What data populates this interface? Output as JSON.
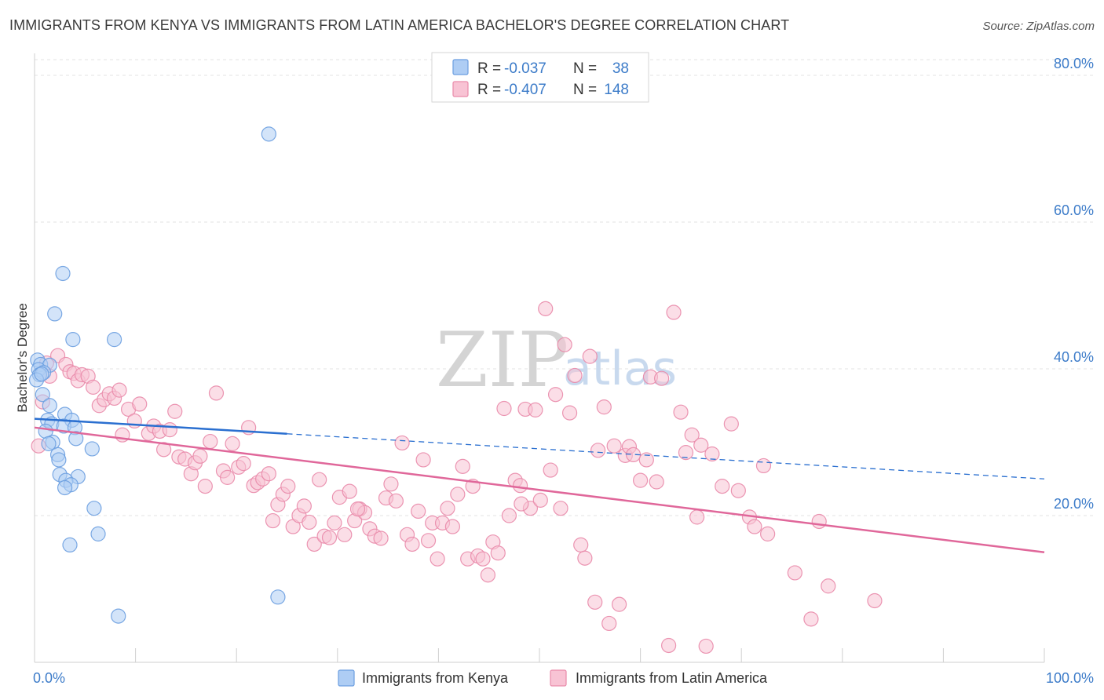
{
  "header": {
    "title": "IMMIGRANTS FROM KENYA VS IMMIGRANTS FROM LATIN AMERICA BACHELOR'S DEGREE CORRELATION CHART",
    "source": "Source: ZipAtlas.com"
  },
  "watermark": {
    "zip": "ZIP",
    "atlas": "atlas"
  },
  "colors": {
    "kenya_fill": "#aecdf4",
    "kenya_stroke": "#6b9ee0",
    "kenya_line": "#2a6fd0",
    "latam_fill": "#f8c3d4",
    "latam_stroke": "#e98aaa",
    "latam_line": "#e0679a",
    "tick_text": "#3d7cc9",
    "grid": "#e3e3e3"
  },
  "legend": {
    "rows": [
      {
        "r_label": "R =",
        "r_value": "-0.037",
        "n_label": "N =",
        "n_value": "38"
      },
      {
        "r_label": "R =",
        "r_value": "-0.407",
        "n_label": "N =",
        "n_value": "148"
      }
    ]
  },
  "chart_data": {
    "type": "scatter",
    "title": "IMMIGRANTS FROM KENYA VS IMMIGRANTS FROM LATIN AMERICA BACHELOR'S DEGREE CORRELATION CHART",
    "xlabel": "",
    "ylabel": "Bachelor's Degree",
    "xlim": [
      0,
      100
    ],
    "ylim": [
      0,
      83
    ],
    "x_tick_labels": [
      "0.0%",
      "100.0%"
    ],
    "y_ticks": [
      20,
      40,
      60,
      80
    ],
    "y_tick_labels": [
      "20.0%",
      "40.0%",
      "60.0%",
      "80.0%"
    ],
    "grid": true,
    "series": [
      {
        "name": "Immigrants from Kenya",
        "R": -0.037,
        "N": 38,
        "trend": {
          "x0": 0,
          "y0": 33.2,
          "x1": 100,
          "y1": 25.0,
          "solid_until_x": 25
        },
        "points": [
          [
            23.2,
            72.0
          ],
          [
            2.8,
            53.0
          ],
          [
            2.0,
            47.5
          ],
          [
            3.8,
            44.0
          ],
          [
            7.9,
            44.0
          ],
          [
            0.3,
            41.2
          ],
          [
            0.6,
            40.6
          ],
          [
            1.5,
            40.5
          ],
          [
            0.4,
            39.9
          ],
          [
            0.9,
            39.5
          ],
          [
            0.5,
            39.2
          ],
          [
            0.2,
            38.5
          ],
          [
            0.8,
            36.5
          ],
          [
            1.5,
            35.0
          ],
          [
            3.0,
            33.8
          ],
          [
            1.3,
            33.0
          ],
          [
            3.7,
            33.0
          ],
          [
            1.7,
            32.5
          ],
          [
            2.9,
            32.2
          ],
          [
            4.0,
            32.0
          ],
          [
            1.1,
            31.5
          ],
          [
            4.1,
            30.5
          ],
          [
            1.8,
            30.0
          ],
          [
            1.4,
            29.8
          ],
          [
            5.7,
            29.1
          ],
          [
            2.3,
            28.3
          ],
          [
            2.4,
            27.6
          ],
          [
            2.5,
            25.6
          ],
          [
            4.3,
            25.3
          ],
          [
            3.1,
            24.8
          ],
          [
            3.6,
            24.2
          ],
          [
            3.0,
            23.8
          ],
          [
            5.9,
            21.0
          ],
          [
            6.3,
            17.5
          ],
          [
            3.5,
            16.0
          ],
          [
            8.3,
            6.3
          ],
          [
            24.1,
            8.9
          ],
          [
            0.7,
            39.3
          ]
        ]
      },
      {
        "name": "Immigrants from Latin America",
        "R": -0.407,
        "N": 148,
        "trend": {
          "x0": 0,
          "y0": 32.0,
          "x1": 100,
          "y1": 15.0
        },
        "points": [
          [
            0.4,
            29.5
          ],
          [
            0.8,
            35.5
          ],
          [
            1.2,
            40.8
          ],
          [
            1.5,
            39.0
          ],
          [
            2.3,
            41.8
          ],
          [
            3.1,
            40.6
          ],
          [
            3.5,
            39.6
          ],
          [
            3.9,
            39.4
          ],
          [
            4.3,
            38.4
          ],
          [
            4.7,
            39.2
          ],
          [
            5.3,
            39.0
          ],
          [
            5.8,
            37.5
          ],
          [
            6.4,
            35.0
          ],
          [
            6.9,
            35.8
          ],
          [
            7.4,
            36.6
          ],
          [
            7.9,
            36.0
          ],
          [
            8.4,
            37.1
          ],
          [
            8.7,
            31.0
          ],
          [
            9.3,
            34.5
          ],
          [
            9.9,
            32.9
          ],
          [
            10.4,
            35.2
          ],
          [
            11.3,
            31.2
          ],
          [
            11.8,
            32.2
          ],
          [
            12.4,
            31.5
          ],
          [
            12.8,
            29.0
          ],
          [
            13.4,
            31.7
          ],
          [
            13.9,
            34.2
          ],
          [
            14.3,
            28.0
          ],
          [
            14.9,
            27.7
          ],
          [
            15.5,
            25.7
          ],
          [
            15.9,
            27.2
          ],
          [
            16.4,
            28.1
          ],
          [
            16.9,
            24.0
          ],
          [
            17.4,
            30.1
          ],
          [
            18.0,
            36.7
          ],
          [
            18.7,
            26.1
          ],
          [
            19.1,
            25.2
          ],
          [
            19.6,
            29.8
          ],
          [
            20.2,
            26.6
          ],
          [
            20.7,
            27.1
          ],
          [
            21.2,
            32.0
          ],
          [
            21.7,
            24.1
          ],
          [
            22.1,
            24.5
          ],
          [
            22.6,
            25.0
          ],
          [
            23.2,
            25.7
          ],
          [
            23.6,
            19.3
          ],
          [
            24.1,
            21.5
          ],
          [
            24.6,
            22.9
          ],
          [
            25.1,
            24.0
          ],
          [
            25.6,
            18.5
          ],
          [
            26.2,
            20.0
          ],
          [
            26.7,
            21.3
          ],
          [
            27.2,
            19.1
          ],
          [
            27.7,
            16.1
          ],
          [
            28.2,
            24.9
          ],
          [
            28.7,
            17.2
          ],
          [
            29.2,
            17.0
          ],
          [
            29.7,
            19.0
          ],
          [
            30.2,
            22.5
          ],
          [
            30.7,
            17.4
          ],
          [
            31.2,
            23.3
          ],
          [
            31.7,
            19.3
          ],
          [
            32.2,
            20.9
          ],
          [
            32.7,
            20.4
          ],
          [
            33.2,
            18.2
          ],
          [
            33.7,
            17.2
          ],
          [
            34.3,
            16.9
          ],
          [
            34.8,
            22.4
          ],
          [
            35.3,
            24.3
          ],
          [
            35.8,
            22.0
          ],
          [
            36.4,
            29.9
          ],
          [
            36.9,
            17.4
          ],
          [
            37.4,
            16.1
          ],
          [
            38.0,
            20.6
          ],
          [
            38.5,
            27.6
          ],
          [
            39.0,
            16.6
          ],
          [
            39.4,
            19.0
          ],
          [
            39.9,
            14.1
          ],
          [
            40.4,
            19.0
          ],
          [
            40.9,
            21.0
          ],
          [
            41.4,
            18.5
          ],
          [
            41.9,
            22.9
          ],
          [
            42.4,
            26.7
          ],
          [
            42.9,
            14.1
          ],
          [
            43.4,
            24.0
          ],
          [
            43.9,
            14.5
          ],
          [
            44.4,
            14.1
          ],
          [
            44.9,
            11.9
          ],
          [
            45.4,
            16.4
          ],
          [
            45.9,
            14.9
          ],
          [
            46.5,
            34.6
          ],
          [
            47.0,
            20.0
          ],
          [
            47.6,
            24.8
          ],
          [
            48.1,
            24.1
          ],
          [
            48.6,
            34.5
          ],
          [
            49.1,
            21.0
          ],
          [
            49.6,
            34.4
          ],
          [
            50.1,
            22.1
          ],
          [
            50.6,
            48.2
          ],
          [
            51.1,
            26.2
          ],
          [
            51.6,
            36.5
          ],
          [
            52.1,
            21.0
          ],
          [
            52.5,
            43.3
          ],
          [
            53.0,
            34.0
          ],
          [
            53.5,
            39.1
          ],
          [
            54.1,
            16.0
          ],
          [
            54.5,
            14.2
          ],
          [
            55.0,
            41.7
          ],
          [
            55.5,
            8.2
          ],
          [
            55.8,
            28.9
          ],
          [
            56.4,
            34.8
          ],
          [
            56.9,
            5.3
          ],
          [
            57.4,
            29.5
          ],
          [
            57.9,
            7.9
          ],
          [
            58.5,
            28.2
          ],
          [
            58.9,
            29.4
          ],
          [
            59.3,
            28.3
          ],
          [
            60.0,
            24.8
          ],
          [
            60.6,
            27.6
          ],
          [
            61.0,
            38.9
          ],
          [
            61.6,
            24.6
          ],
          [
            62.1,
            38.7
          ],
          [
            62.8,
            2.3
          ],
          [
            63.3,
            47.7
          ],
          [
            64.0,
            34.1
          ],
          [
            64.5,
            28.6
          ],
          [
            65.1,
            31.0
          ],
          [
            65.6,
            19.8
          ],
          [
            66.0,
            29.6
          ],
          [
            66.5,
            2.2
          ],
          [
            67.1,
            28.4
          ],
          [
            68.1,
            24.0
          ],
          [
            69.0,
            32.5
          ],
          [
            69.7,
            23.4
          ],
          [
            70.8,
            19.8
          ],
          [
            71.3,
            18.5
          ],
          [
            72.2,
            26.8
          ],
          [
            72.6,
            17.5
          ],
          [
            75.3,
            12.2
          ],
          [
            76.9,
            5.9
          ],
          [
            77.7,
            19.2
          ],
          [
            78.6,
            10.4
          ],
          [
            83.2,
            8.4
          ],
          [
            48.2,
            21.6
          ],
          [
            32.0,
            20.9
          ]
        ]
      }
    ]
  },
  "bottom_legend": {
    "items": [
      {
        "label": "Immigrants from Kenya"
      },
      {
        "label": "Immigrants from Latin America"
      }
    ]
  }
}
